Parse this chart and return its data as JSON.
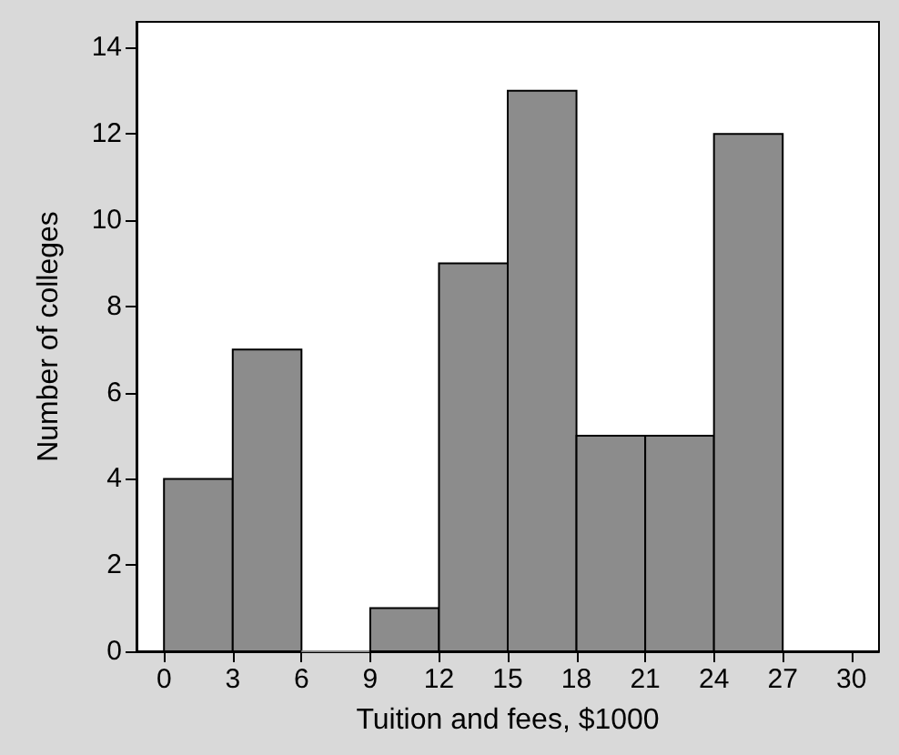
{
  "chart_data": {
    "type": "histogram",
    "xlabel": "Tuition and fees, $1000",
    "ylabel": "Number of colleges",
    "bins": [
      0,
      3,
      6,
      9,
      12,
      15,
      18,
      21,
      24,
      27
    ],
    "values": [
      4,
      7,
      0,
      1,
      9,
      13,
      5,
      5,
      12
    ],
    "color": "#8c8c8c",
    "xlim": [
      -1.2,
      31.2
    ],
    "xticks": [
      0,
      3,
      6,
      9,
      12,
      15,
      18,
      21,
      24,
      27,
      30
    ],
    "ylim": [
      0,
      14.6
    ],
    "yticks": [
      0,
      2,
      4,
      6,
      8,
      10,
      12,
      14
    ],
    "grid": false
  }
}
